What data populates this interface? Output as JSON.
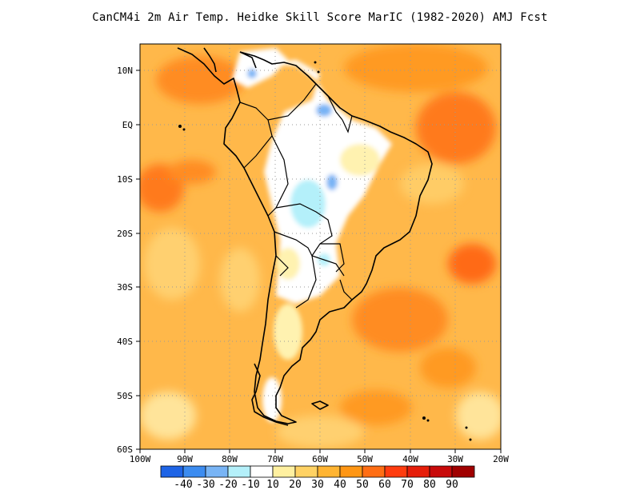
{
  "title": "CanCM4i  2m Air Temp. Heidke Skill Score MarIC (1982-2020) AMJ Fcst",
  "lat_labels": [
    "10N",
    "EQ",
    "10S",
    "20S",
    "30S",
    "40S",
    "50S",
    "60S"
  ],
  "lon_labels": [
    "100W",
    "90W",
    "80W",
    "70W",
    "60W",
    "50W",
    "40W",
    "30W",
    "20W"
  ],
  "colorbar": {
    "colors": [
      "#1e64e6",
      "#3c8cf0",
      "#78b4f5",
      "#b4f0fa",
      "#ffffff",
      "#fff0a0",
      "#ffd264",
      "#ffb432",
      "#ff9614",
      "#ff6e14",
      "#ff3c0f",
      "#e61e0a",
      "#c80a0a",
      "#a00000"
    ],
    "labels": [
      "-40",
      "-30",
      "-20",
      "-10",
      "10",
      "20",
      "30",
      "40",
      "50",
      "60",
      "70",
      "80",
      "90"
    ]
  },
  "map": {
    "extent": "100W-20W, 60S-15N",
    "field": "Heidke Skill Score",
    "grid": "dotted"
  }
}
